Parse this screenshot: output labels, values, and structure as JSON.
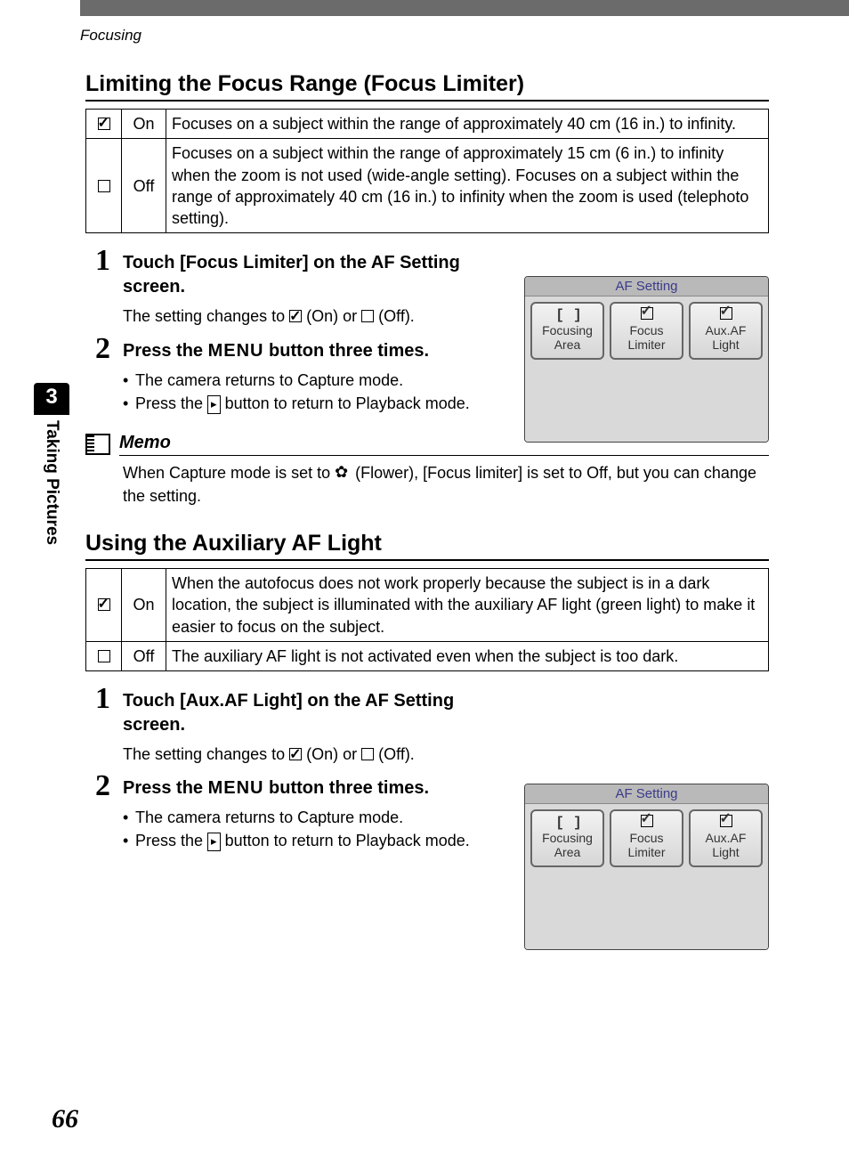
{
  "breadcrumb": "Focusing",
  "chapter_tab": {
    "number": "3",
    "title": "Taking Pictures"
  },
  "page_number": "66",
  "section1": {
    "title": "Limiting the Focus Range (Focus Limiter)",
    "table": {
      "rows": [
        {
          "symbol_checked": true,
          "label": "On",
          "desc": "Focuses on a subject within the range of approximately 40 cm (16 in.) to infinity."
        },
        {
          "symbol_checked": false,
          "label": "Off",
          "desc": "Focuses on a subject within the range of approximately 15 cm (6 in.) to infinity when the zoom is not used (wide-angle setting). Focuses on a subject within the range of approximately 40 cm (16 in.) to infinity when the zoom is used (telephoto setting)."
        }
      ]
    },
    "steps": [
      {
        "num": "1",
        "title": "Touch [Focus Limiter] on the AF Setting screen.",
        "desc_pre": "The setting changes to ",
        "desc_mid": " (On) or ",
        "desc_post": " (Off)."
      },
      {
        "num": "2",
        "title_pre": "Press the ",
        "title_menu": "MENU",
        "title_post": " button three times.",
        "bullets": [
          "The camera returns to Capture mode.",
          "Press the ▸ button to return to Playback mode."
        ],
        "bullet1": "The camera returns to Capture mode.",
        "bullet2_pre": "Press the ",
        "bullet2_post": " button to return to Playback mode."
      }
    ],
    "memo_label": "Memo",
    "memo_pre": "When Capture mode is set to ",
    "memo_post": " (Flower), [Focus limiter] is set to Off, but you can change the setting."
  },
  "section2": {
    "title": "Using the Auxiliary AF Light",
    "table": {
      "rows": [
        {
          "symbol_checked": true,
          "label": "On",
          "desc": "When the autofocus does not work properly because the subject is in a dark location, the subject is illuminated with the auxiliary AF light (green light) to make it easier to focus on the subject."
        },
        {
          "symbol_checked": false,
          "label": "Off",
          "desc": "The auxiliary AF light is not activated even when the subject is too dark."
        }
      ]
    },
    "steps": [
      {
        "num": "1",
        "title": "Touch [Aux.AF Light] on the AF Setting screen.",
        "desc_pre": "The setting changes to ",
        "desc_mid": " (On) or ",
        "desc_post": " (Off)."
      },
      {
        "num": "2",
        "title_pre": "Press the ",
        "title_menu": "MENU",
        "title_post": " button three times.",
        "bullet1": "The camera returns to Capture mode.",
        "bullet2_pre": "Press the ",
        "bullet2_post": " button to return to Playback mode."
      }
    ]
  },
  "af_panel": {
    "title": "AF Setting",
    "buttons": [
      {
        "icon": "�〔 〕",
        "line1": "Focusing",
        "line2": "Area",
        "checked": false
      },
      {
        "icon": "check",
        "line1": "Focus",
        "line2": "Limiter",
        "checked": true
      },
      {
        "icon": "check",
        "line1": "Aux.AF",
        "line2": "Light",
        "checked": true
      }
    ]
  }
}
